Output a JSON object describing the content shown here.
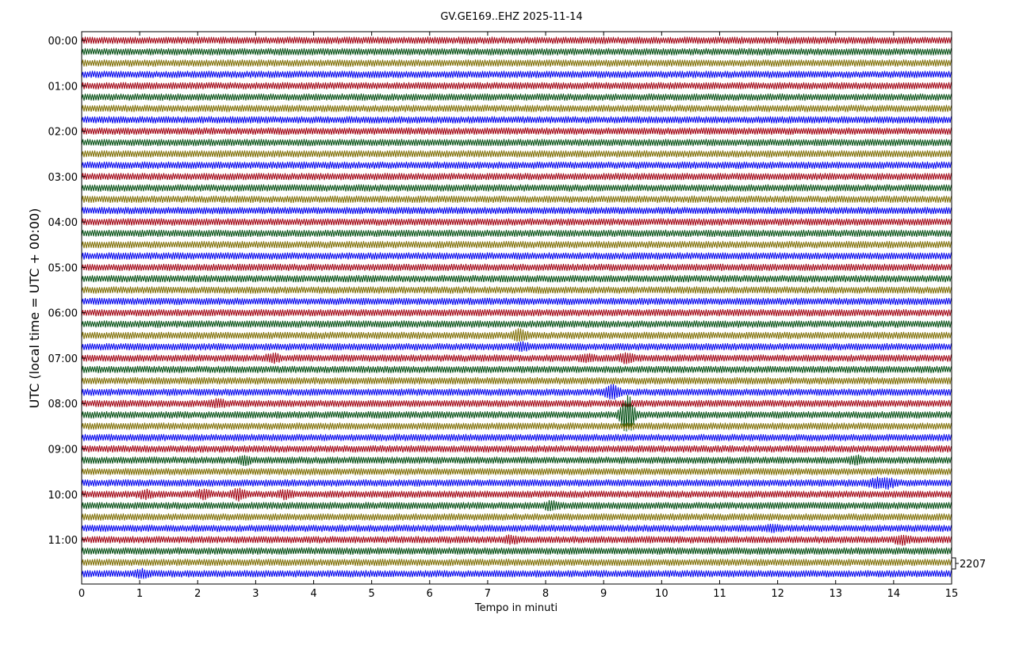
{
  "chart_data": {
    "type": "line",
    "title": "GV.GE169..EHZ 2025-11-14",
    "xlabel": "Tempo in minuti",
    "ylabel": "UTC (local time = UTC + 00:00)",
    "xlim": [
      0,
      15
    ],
    "x_ticks": [
      "0",
      "1",
      "2",
      "3",
      "4",
      "5",
      "6",
      "7",
      "8",
      "9",
      "10",
      "11",
      "12",
      "13",
      "14",
      "15"
    ],
    "y_ticks": [
      "00:00",
      "01:00",
      "02:00",
      "03:00",
      "04:00",
      "05:00",
      "06:00",
      "07:00",
      "08:00",
      "09:00",
      "10:00",
      "11:00"
    ],
    "trace_interval_minutes": 15,
    "trace_count": 48,
    "trace_colors": [
      "#a00010",
      "#004d10",
      "#7d6c00",
      "#0000ee"
    ],
    "scale_label": "2207",
    "events": [
      {
        "trace": 26,
        "minute": 7.55,
        "level": 2.2
      },
      {
        "trace": 27,
        "minute": 7.6,
        "level": 1.6
      },
      {
        "trace": 28,
        "minute": 3.3,
        "level": 1.8
      },
      {
        "trace": 28,
        "minute": 8.7,
        "level": 1.6
      },
      {
        "trace": 28,
        "minute": 9.4,
        "level": 2.0
      },
      {
        "trace": 31,
        "minute": 9.15,
        "level": 2.6
      },
      {
        "trace": 32,
        "minute": 2.35,
        "level": 1.6
      },
      {
        "trace": 33,
        "minute": 9.38,
        "level": 3.2
      },
      {
        "trace": 33,
        "minute": 9.45,
        "level": 2.4
      },
      {
        "trace": 37,
        "minute": 2.8,
        "level": 1.8
      },
      {
        "trace": 37,
        "minute": 13.35,
        "level": 1.8
      },
      {
        "trace": 39,
        "minute": 13.7,
        "level": 1.9
      },
      {
        "trace": 39,
        "minute": 13.9,
        "level": 2.0
      },
      {
        "trace": 40,
        "minute": 1.1,
        "level": 1.7
      },
      {
        "trace": 40,
        "minute": 2.1,
        "level": 1.8
      },
      {
        "trace": 40,
        "minute": 2.7,
        "level": 2.1
      },
      {
        "trace": 40,
        "minute": 3.5,
        "level": 1.7
      },
      {
        "trace": 41,
        "minute": 8.1,
        "level": 1.8
      },
      {
        "trace": 43,
        "minute": 11.9,
        "level": 1.6
      },
      {
        "trace": 44,
        "minute": 7.4,
        "level": 1.6
      },
      {
        "trace": 44,
        "minute": 14.15,
        "level": 1.8
      },
      {
        "trace": 47,
        "minute": 1.05,
        "level": 1.7
      }
    ]
  }
}
